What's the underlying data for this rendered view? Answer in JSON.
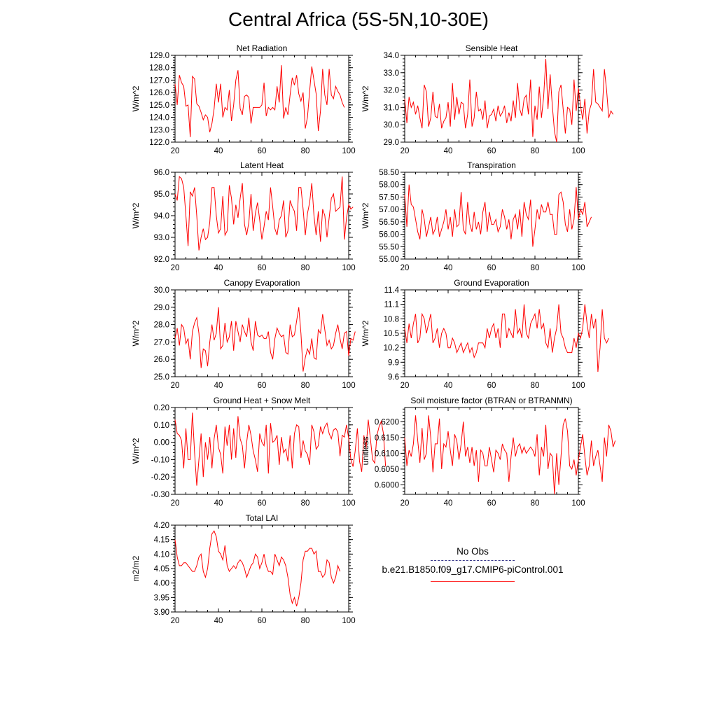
{
  "title": "Central Africa (5S-5N,10-30E)",
  "colors": {
    "model": "#ff0000",
    "obs": "#3a3a8c",
    "axis": "#000000"
  },
  "legend": {
    "obs_label": "No Obs",
    "model_label": "b.e21.B1850.f09_g17.CMIP6-piControl.001"
  },
  "chart_data": [
    {
      "type": "line",
      "title": "Net Radiation",
      "xlabel": "",
      "ylabel": "W/m^2",
      "xlim": [
        20,
        100
      ],
      "ylim": [
        122.0,
        129.0
      ],
      "xtick_step": 20,
      "yticks": [
        "122.0",
        "123.0",
        "124.0",
        "125.0",
        "126.0",
        "127.0",
        "128.0",
        "129.0"
      ],
      "series": [
        {
          "x0": 20,
          "values": [
            126.7,
            125.0,
            127.4,
            126.8,
            126.5,
            124.9,
            125.0,
            122.4,
            127.3,
            127.1,
            125.1,
            124.9,
            124.4,
            123.8,
            124.2,
            124.0,
            122.8,
            123.5,
            124.7,
            126.7,
            125.2,
            126.7,
            124.0,
            124.8,
            124.6,
            126.2,
            123.7,
            125.0,
            127.0,
            127.8,
            124.7,
            124.2,
            125.7,
            125.8,
            125.6,
            123.5,
            124.8,
            124.8,
            124.8,
            124.8,
            125.0,
            126.8,
            124.1,
            124.8,
            124.6,
            124.8,
            124.6,
            126.5,
            125.2,
            128.2,
            123.9,
            124.8,
            124.2,
            125.8,
            127.2,
            126.6,
            127.4,
            125.9,
            125.3,
            126.0,
            123.1,
            124.0,
            126.1,
            128.1,
            127.0,
            125.9,
            122.9,
            124.5,
            127.9,
            125.8,
            125.0,
            127.9,
            125.8,
            125.5,
            126.5,
            126.1,
            125.8,
            125.2,
            124.8
          ]
        }
      ]
    },
    {
      "type": "line",
      "title": "Sensible Heat",
      "xlabel": "",
      "ylabel": "W/m^2",
      "xlim": [
        20,
        100
      ],
      "ylim": [
        29.0,
        34.0
      ],
      "xtick_step": 20,
      "yticks": [
        "29.0",
        "30.0",
        "31.0",
        "32.0",
        "33.0",
        "34.0"
      ],
      "series": [
        {
          "x0": 20,
          "values": [
            31.5,
            30.1,
            31.6,
            31.0,
            31.3,
            30.6,
            31.1,
            30.4,
            29.8,
            32.3,
            31.9,
            29.9,
            30.4,
            31.9,
            30.5,
            30.4,
            31.2,
            29.8,
            30.2,
            30.4,
            31.3,
            29.9,
            32.4,
            30.3,
            31.6,
            30.6,
            31.3,
            31.2,
            29.8,
            30.6,
            32.6,
            29.9,
            30.4,
            31.9,
            30.8,
            30.9,
            30.3,
            31.4,
            29.8,
            30.5,
            30.6,
            30.9,
            30.2,
            31.1,
            30.5,
            30.7,
            31.1,
            30.1,
            30.7,
            30.2,
            31.4,
            30.4,
            32.4,
            30.9,
            30.5,
            31.5,
            31.7,
            30.6,
            32.6,
            29.3,
            31.1,
            30.3,
            32.2,
            30.4,
            31.6,
            33.8,
            30.9,
            32.9,
            31.1,
            29.6,
            29.0,
            31.9,
            32.3,
            30.9,
            29.5,
            31.0,
            30.9,
            30.0,
            32.6,
            30.8,
            32.1,
            31.1,
            30.3,
            31.5,
            29.5,
            30.8,
            31.2,
            33.2,
            31.3,
            31.2,
            31.0,
            30.8,
            33.2,
            32.0,
            30.4,
            30.8,
            30.6
          ]
        }
      ]
    },
    {
      "type": "line",
      "title": "Latent Heat",
      "xlabel": "",
      "ylabel": "W/m^2",
      "xlim": [
        20,
        100
      ],
      "ylim": [
        92.0,
        96.0
      ],
      "xtick_step": 20,
      "yticks": [
        "92.0",
        "93.0",
        "94.0",
        "95.0",
        "96.0"
      ],
      "series": [
        {
          "x0": 20,
          "values": [
            95.0,
            94.7,
            95.8,
            95.7,
            95.3,
            94.0,
            92.6,
            95.1,
            94.9,
            95.3,
            94.0,
            92.4,
            93.0,
            93.4,
            92.9,
            93.0,
            93.7,
            95.3,
            95.3,
            94.0,
            93.2,
            93.4,
            94.9,
            93.1,
            93.3,
            95.4,
            94.8,
            93.6,
            94.5,
            93.9,
            94.8,
            95.5,
            93.6,
            93.1,
            93.7,
            95.0,
            93.3,
            94.1,
            94.6,
            93.8,
            92.9,
            93.5,
            94.2,
            93.8,
            95.3,
            94.4,
            93.4,
            93.1,
            93.8,
            94.0,
            94.7,
            93.0,
            93.3,
            94.7,
            94.4,
            94.2,
            93.3,
            95.3,
            95.3,
            94.3,
            93.1,
            94.1,
            94.6,
            95.5,
            94.0,
            93.1,
            94.2,
            92.8,
            94.3,
            94.0,
            93.0,
            93.9,
            94.8,
            95.0,
            94.2,
            94.3,
            94.4,
            95.8,
            92.9,
            93.9,
            94.5,
            94.3,
            94.4
          ]
        }
      ]
    },
    {
      "type": "line",
      "title": "Transpiration",
      "xlabel": "",
      "ylabel": "W/m^2",
      "xlim": [
        20,
        100
      ],
      "ylim": [
        55.0,
        58.5
      ],
      "xtick_step": 20,
      "yticks": [
        "55.00",
        "55.50",
        "56.00",
        "56.50",
        "57.00",
        "57.50",
        "58.00",
        "58.50"
      ],
      "series": [
        {
          "x0": 20,
          "values": [
            57.6,
            56.3,
            58.0,
            57.2,
            57.1,
            56.6,
            56.1,
            55.8,
            57.0,
            56.6,
            55.9,
            56.3,
            56.7,
            56.0,
            56.2,
            56.7,
            55.9,
            56.2,
            56.5,
            57.0,
            56.2,
            56.7,
            55.9,
            57.0,
            56.3,
            56.4,
            57.7,
            56.2,
            56.0,
            57.3,
            56.4,
            56.1,
            56.9,
            56.2,
            56.5,
            56.0,
            56.9,
            57.3,
            56.1,
            56.9,
            56.4,
            56.4,
            56.6,
            56.1,
            56.3,
            57.0,
            56.7,
            56.2,
            56.6,
            55.8,
            56.6,
            56.8,
            56.2,
            57.0,
            55.9,
            57.3,
            56.8,
            56.6,
            57.4,
            55.5,
            56.2,
            57.0,
            56.6,
            57.2,
            56.9,
            56.9,
            57.3,
            56.8,
            56.8,
            56.0,
            56.0,
            57.6,
            57.7,
            57.3,
            56.4,
            56.1,
            57.0,
            56.2,
            56.6,
            57.9,
            56.6,
            57.0,
            56.8,
            57.3,
            56.3,
            56.5,
            56.7
          ]
        }
      ]
    },
    {
      "type": "line",
      "title": "Canopy Evaporation",
      "xlabel": "",
      "ylabel": "W/m^2",
      "xlim": [
        20,
        100
      ],
      "ylim": [
        25.0,
        30.0
      ],
      "xtick_step": 20,
      "yticks": [
        "25.0",
        "26.0",
        "27.0",
        "28.0",
        "29.0",
        "30.0"
      ],
      "series": [
        {
          "x0": 20,
          "values": [
            27.2,
            27.8,
            26.8,
            28.0,
            27.8,
            26.9,
            27.2,
            26.0,
            27.6,
            28.1,
            28.4,
            27.5,
            25.5,
            26.6,
            26.5,
            25.6,
            27.0,
            28.0,
            27.1,
            27.5,
            29.0,
            26.6,
            26.8,
            28.1,
            27.0,
            27.3,
            28.2,
            26.5,
            28.2,
            27.6,
            27.0,
            28.0,
            27.6,
            27.3,
            28.4,
            27.0,
            26.5,
            28.2,
            27.4,
            27.3,
            27.4,
            27.2,
            27.2,
            27.6,
            26.4,
            26.0,
            27.2,
            27.8,
            27.5,
            27.3,
            27.4,
            26.4,
            26.3,
            28.0,
            27.3,
            27.4,
            28.2,
            29.0,
            27.5,
            25.3,
            26.1,
            26.6,
            26.3,
            27.2,
            26.1,
            26.0,
            27.7,
            27.5,
            28.6,
            27.7,
            26.8,
            27.1,
            26.6,
            26.8,
            27.5,
            28.0,
            27.2,
            26.6,
            27.5,
            27.6,
            26.2,
            27.2,
            27.1,
            27.6
          ]
        }
      ]
    },
    {
      "type": "line",
      "title": "Ground Evaporation",
      "xlabel": "",
      "ylabel": "W/m^2",
      "xlim": [
        20,
        100
      ],
      "ylim": [
        9.6,
        11.4
      ],
      "xtick_step": 20,
      "yticks": [
        "9.6",
        "9.9",
        "10.2",
        "10.5",
        "10.8",
        "11.1",
        "11.4"
      ],
      "series": [
        {
          "x0": 20,
          "values": [
            10.6,
            10.3,
            10.7,
            10.4,
            10.7,
            10.9,
            10.3,
            10.4,
            10.9,
            10.8,
            10.5,
            10.7,
            10.9,
            10.3,
            10.4,
            10.6,
            10.2,
            10.5,
            10.6,
            10.5,
            10.2,
            10.2,
            10.4,
            10.3,
            10.1,
            10.2,
            10.3,
            10.1,
            10.2,
            10.3,
            10.1,
            10.2,
            10.0,
            10.1,
            10.3,
            10.3,
            10.3,
            10.2,
            10.6,
            10.4,
            10.6,
            10.7,
            10.4,
            10.6,
            10.2,
            10.9,
            10.9,
            10.4,
            10.6,
            10.5,
            10.4,
            11.0,
            10.5,
            10.6,
            10.4,
            11.1,
            10.5,
            10.4,
            10.7,
            10.8,
            10.9,
            10.6,
            11.0,
            10.6,
            10.7,
            10.3,
            10.2,
            10.6,
            10.1,
            10.4,
            10.6,
            11.1,
            10.5,
            10.4,
            10.2,
            10.1,
            10.1,
            10.1,
            10.4,
            10.2,
            10.5,
            10.4,
            10.6,
            11.1,
            10.7,
            10.4,
            10.9,
            10.6,
            10.8,
            9.7,
            10.2,
            11.0,
            10.4,
            10.3,
            10.4
          ]
        }
      ]
    },
    {
      "type": "line",
      "title": "Ground Heat + Snow Melt",
      "xlabel": "",
      "ylabel": "W/m^2",
      "xlim": [
        20,
        100
      ],
      "ylim": [
        -0.3,
        0.2
      ],
      "xtick_step": 20,
      "yticks": [
        "-0.30",
        "-0.20",
        "-0.10",
        "0.00",
        "0.10",
        "0.20"
      ],
      "series": [
        {
          "x0": 20,
          "values": [
            0.13,
            0.05,
            0.04,
            0.01,
            -0.15,
            0.08,
            -0.1,
            -0.1,
            0.17,
            -0.06,
            -0.25,
            -0.1,
            0.05,
            -0.2,
            0.0,
            -0.1,
            0.03,
            -0.15,
            0.02,
            0.1,
            -0.03,
            -0.07,
            -0.18,
            0.09,
            -0.02,
            0.1,
            -0.1,
            0.08,
            -0.09,
            0.15,
            0.02,
            -0.02,
            -0.15,
            0.0,
            0.1,
            0.04,
            -0.05,
            -0.1,
            -0.17,
            0.05,
            0.0,
            -0.02,
            0.1,
            -0.18,
            0.11,
            0.0,
            0.01,
            0.04,
            -0.13,
            0.03,
            -0.06,
            -0.04,
            -0.11,
            0.04,
            -0.15,
            0.05,
            0.1,
            0.09,
            -0.09,
            0.01,
            -0.05,
            -0.07,
            -0.13,
            0.1,
            0.06,
            -0.04,
            -0.02,
            0.09,
            0.05,
            0.09,
            0.11,
            0.05,
            0.02,
            0.07,
            0.08,
            0.06,
            -0.08,
            0.04,
            0.03,
            0.1,
            0.02,
            -0.1,
            -0.14,
            -0.05,
            0.08,
            -0.11,
            -0.17,
            0.04,
            -0.04,
            0.13,
            0.02,
            -0.1,
            -0.12,
            0.04,
            0.09,
            0.12,
            0.05,
            -0.14
          ]
        }
      ]
    },
    {
      "type": "line",
      "title": "Soil moisture factor (BTRAN or BTRANMN)",
      "xlabel": "",
      "ylabel": "unitless",
      "xlim": [
        20,
        100
      ],
      "ylim": [
        0.597,
        0.6245
      ],
      "xtick_step": 20,
      "yticks": [
        "0.6000",
        "0.6050",
        "0.6100",
        "0.6150",
        "0.6200"
      ],
      "series": [
        {
          "x0": 20,
          "values": [
            0.615,
            0.606,
            0.611,
            0.609,
            0.613,
            0.622,
            0.614,
            0.607,
            0.618,
            0.608,
            0.61,
            0.622,
            0.615,
            0.604,
            0.613,
            0.613,
            0.621,
            0.605,
            0.613,
            0.612,
            0.617,
            0.611,
            0.606,
            0.616,
            0.614,
            0.608,
            0.613,
            0.62,
            0.609,
            0.612,
            0.607,
            0.612,
            0.606,
            0.611,
            0.601,
            0.611,
            0.61,
            0.606,
            0.606,
            0.612,
            0.608,
            0.604,
            0.611,
            0.61,
            0.608,
            0.613,
            0.611,
            0.61,
            0.601,
            0.609,
            0.615,
            0.609,
            0.612,
            0.613,
            0.61,
            0.612,
            0.61,
            0.611,
            0.612,
            0.611,
            0.609,
            0.616,
            0.603,
            0.612,
            0.609,
            0.619,
            0.605,
            0.61,
            0.609,
            0.597,
            0.61,
            0.6,
            0.609,
            0.619,
            0.621,
            0.617,
            0.606,
            0.605,
            0.608,
            0.603,
            0.608,
            0.612,
            0.616,
            0.609,
            0.603,
            0.606,
            0.614,
            0.606,
            0.609,
            0.611,
            0.606,
            0.601,
            0.615,
            0.609,
            0.619,
            0.617,
            0.612,
            0.614
          ]
        }
      ]
    },
    {
      "type": "line",
      "title": "Total LAI",
      "xlabel": "",
      "ylabel": "m2/m2",
      "xlim": [
        20,
        100
      ],
      "ylim": [
        3.9,
        4.2
      ],
      "xtick_step": 20,
      "yticks": [
        "3.90",
        "3.95",
        "4.00",
        "4.05",
        "4.10",
        "4.15",
        "4.20"
      ],
      "series": [
        {
          "x0": 20,
          "values": [
            4.15,
            4.09,
            4.06,
            4.06,
            4.07,
            4.07,
            4.06,
            4.05,
            4.04,
            4.04,
            4.06,
            4.09,
            4.1,
            4.04,
            4.02,
            4.05,
            4.12,
            4.17,
            4.18,
            4.16,
            4.11,
            4.1,
            4.08,
            4.13,
            4.06,
            4.04,
            4.05,
            4.06,
            4.05,
            4.07,
            4.08,
            4.07,
            4.05,
            4.02,
            4.04,
            4.06,
            4.07,
            4.1,
            4.09,
            4.05,
            4.07,
            4.1,
            4.06,
            4.04,
            4.04,
            4.03,
            4.1,
            4.08,
            4.06,
            4.09,
            4.08,
            4.06,
            4.02,
            3.96,
            3.93,
            3.95,
            3.92,
            3.95,
            4.0,
            4.08,
            4.11,
            4.11,
            4.12,
            4.12,
            4.1,
            4.11,
            4.04,
            4.04,
            4.02,
            4.03,
            4.08,
            4.07,
            4.02,
            4.0,
            4.02,
            4.06,
            4.04
          ]
        }
      ]
    }
  ]
}
